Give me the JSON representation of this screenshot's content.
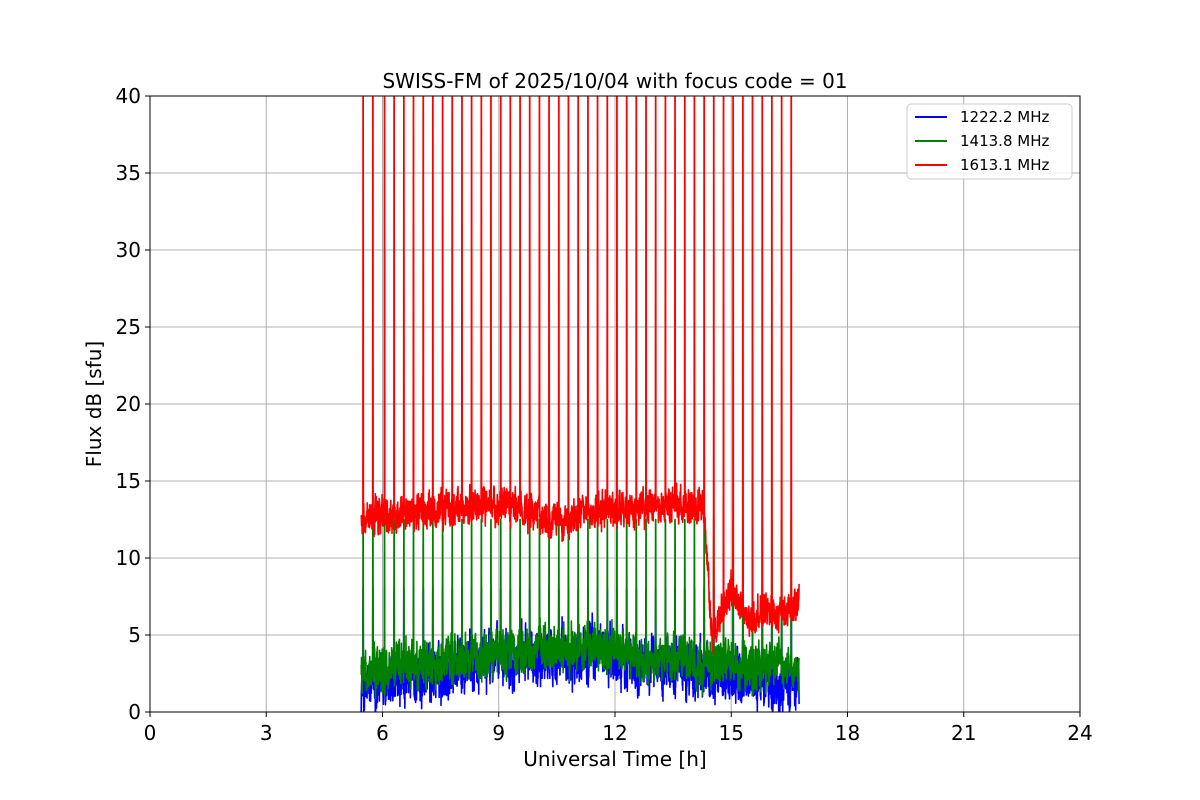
{
  "chart_data": {
    "type": "line",
    "title": "SWISS-FM of 2025/10/04 with focus code = 01",
    "xlabel": "Universal Time [h]",
    "ylabel": "Flux dB [sfu]",
    "xlim": [
      0,
      24
    ],
    "ylim": [
      0,
      40
    ],
    "xticks": [
      0,
      3,
      6,
      9,
      12,
      15,
      18,
      21,
      24
    ],
    "yticks": [
      0,
      5,
      10,
      15,
      20,
      25,
      30,
      35,
      40
    ],
    "grid": true,
    "legend_position": "top-right",
    "data_start_h": 5.45,
    "data_end_h": 16.75,
    "series": [
      {
        "name": "1222.2 MHz",
        "color": "#0000ff",
        "baseline_db": [
          [
            5.5,
            1.5
          ],
          [
            6.5,
            2.0
          ],
          [
            7.5,
            2.5
          ],
          [
            8.5,
            3.5
          ],
          [
            9.5,
            3.5
          ],
          [
            10.5,
            3.5
          ],
          [
            11.5,
            4.0
          ],
          [
            12.5,
            3.0
          ],
          [
            13.5,
            3.0
          ],
          [
            14.5,
            2.5
          ],
          [
            15.5,
            2.0
          ],
          [
            16.75,
            2.0
          ]
        ],
        "noise_db": 1.6,
        "spike_peak_db": 8.0
      },
      {
        "name": "1413.8 MHz",
        "color": "#008000",
        "baseline_db": [
          [
            5.5,
            2.5
          ],
          [
            6.5,
            3.0
          ],
          [
            7.5,
            3.2
          ],
          [
            8.5,
            3.8
          ],
          [
            9.5,
            4.0
          ],
          [
            10.5,
            4.0
          ],
          [
            11.5,
            4.2
          ],
          [
            12.5,
            3.5
          ],
          [
            13.5,
            3.5
          ],
          [
            14.5,
            3.2
          ],
          [
            15.5,
            2.8
          ],
          [
            16.75,
            3.0
          ]
        ],
        "noise_db": 1.3,
        "spike_peak_db": 12.5
      },
      {
        "name": "1613.1 MHz",
        "color": "#ff0000",
        "baseline_db": [
          [
            5.5,
            12.5
          ],
          [
            6.5,
            12.8
          ],
          [
            7.5,
            13.2
          ],
          [
            8.5,
            13.5
          ],
          [
            9.5,
            13.3
          ],
          [
            10.5,
            12.5
          ],
          [
            11.5,
            13.2
          ],
          [
            12.5,
            13.0
          ],
          [
            13.5,
            13.5
          ],
          [
            14.3,
            13.2
          ],
          [
            14.5,
            5.0
          ],
          [
            15.0,
            8.0
          ],
          [
            15.5,
            6.0
          ],
          [
            16.0,
            6.5
          ],
          [
            16.75,
            7.0
          ]
        ],
        "noise_db": 1.0,
        "spike_peak_db": 40.0
      }
    ],
    "spike_times_h": [
      5.5,
      5.75,
      6.05,
      6.3,
      6.55,
      6.8,
      7.05,
      7.3,
      7.55,
      7.8,
      8.05,
      8.3,
      8.55,
      8.8,
      9.05,
      9.3,
      9.55,
      9.8,
      10.05,
      10.3,
      10.55,
      10.8,
      11.05,
      11.3,
      11.55,
      11.8,
      12.05,
      12.3,
      12.55,
      12.8,
      13.05,
      13.3,
      13.55,
      13.8,
      14.05,
      14.3,
      14.55,
      14.8,
      15.05,
      15.3,
      15.55,
      15.8,
      16.05,
      16.3,
      16.55
    ]
  }
}
